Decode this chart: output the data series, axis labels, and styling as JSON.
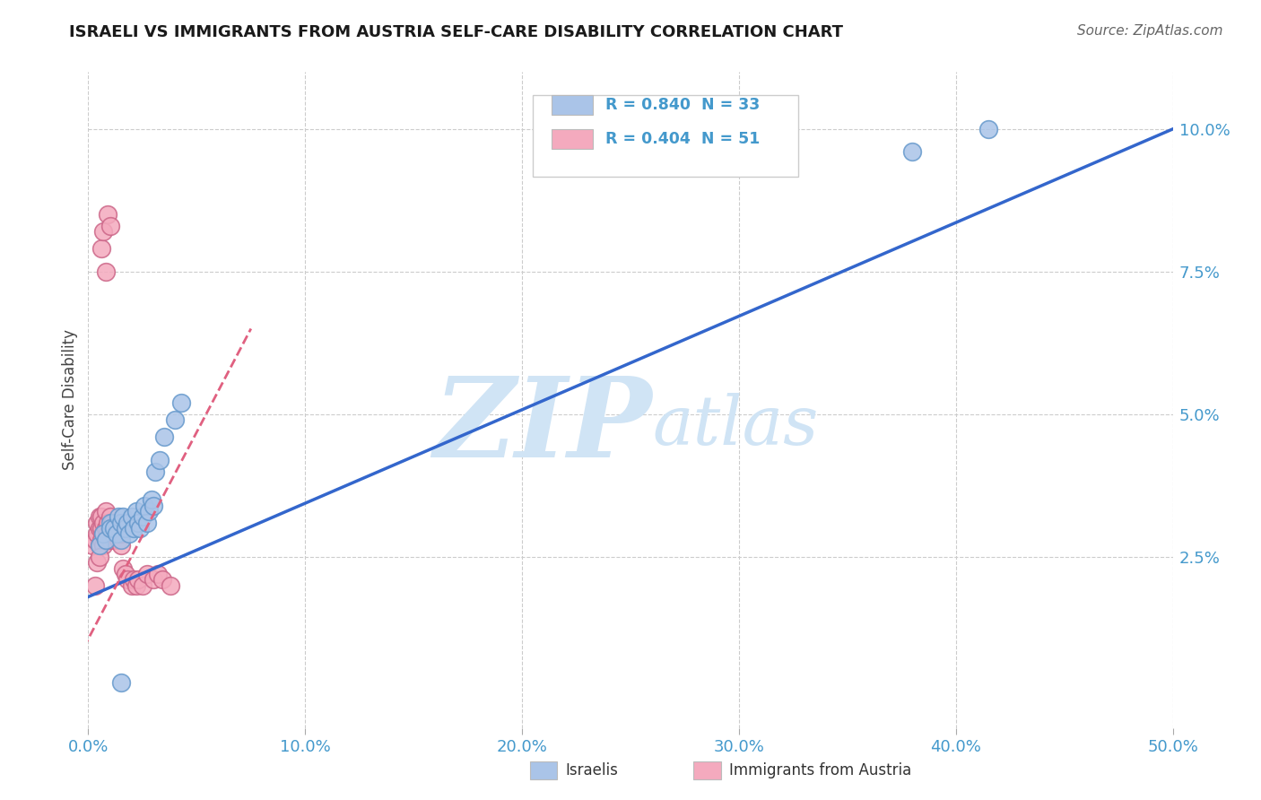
{
  "title": "ISRAELI VS IMMIGRANTS FROM AUSTRIA SELF-CARE DISABILITY CORRELATION CHART",
  "source": "Source: ZipAtlas.com",
  "ylabel": "Self-Care Disability",
  "xlim": [
    0.0,
    0.5
  ],
  "ylim": [
    -0.005,
    0.11
  ],
  "xticks": [
    0.0,
    0.1,
    0.2,
    0.3,
    0.4,
    0.5
  ],
  "yticks": [
    0.025,
    0.05,
    0.075,
    0.1
  ],
  "ytick_labels": [
    "2.5%",
    "5.0%",
    "7.5%",
    "10.0%"
  ],
  "xtick_labels": [
    "0.0%",
    "10.0%",
    "20.0%",
    "30.0%",
    "40.0%",
    "50.0%"
  ],
  "legend_entries": [
    {
      "label": "R = 0.840  N = 33",
      "color": "#aac4e8"
    },
    {
      "label": "R = 0.404  N = 51",
      "color": "#f4aabe"
    }
  ],
  "legend_bottom": [
    {
      "label": "Israelis",
      "color": "#aac4e8"
    },
    {
      "label": "Immigrants from Austria",
      "color": "#f4aabe"
    }
  ],
  "title_color": "#1a1a1a",
  "source_color": "#666666",
  "axis_color": "#4499cc",
  "grid_color": "#cccccc",
  "watermark_zip": "ZIP",
  "watermark_atlas": "atlas",
  "watermark_color": "#d0e4f5",
  "blue_line_color": "#3366cc",
  "pink_line_color": "#e06080",
  "blue_dot_color": "#aac4e8",
  "pink_dot_color": "#f4aabe",
  "blue_dot_edge": "#6699cc",
  "pink_dot_edge": "#cc6688",
  "blue_line_x": [
    0.0,
    0.5
  ],
  "blue_line_y": [
    0.018,
    0.1
  ],
  "pink_line_x": [
    -0.005,
    0.075
  ],
  "pink_line_y": [
    0.007,
    0.065
  ],
  "blue_scatter_x": [
    0.005,
    0.007,
    0.008,
    0.01,
    0.01,
    0.012,
    0.013,
    0.014,
    0.015,
    0.015,
    0.016,
    0.017,
    0.018,
    0.019,
    0.02,
    0.021,
    0.022,
    0.023,
    0.024,
    0.025,
    0.026,
    0.027,
    0.028,
    0.029,
    0.03,
    0.031,
    0.033,
    0.035,
    0.04,
    0.043,
    0.38,
    0.415,
    0.015
  ],
  "blue_scatter_y": [
    0.027,
    0.029,
    0.028,
    0.031,
    0.03,
    0.03,
    0.029,
    0.032,
    0.028,
    0.031,
    0.032,
    0.03,
    0.031,
    0.029,
    0.032,
    0.03,
    0.033,
    0.031,
    0.03,
    0.032,
    0.034,
    0.031,
    0.033,
    0.035,
    0.034,
    0.04,
    0.042,
    0.046,
    0.049,
    0.052,
    0.096,
    0.1,
    0.003
  ],
  "pink_scatter_x": [
    0.002,
    0.003,
    0.004,
    0.004,
    0.005,
    0.005,
    0.005,
    0.006,
    0.006,
    0.006,
    0.007,
    0.007,
    0.007,
    0.008,
    0.008,
    0.008,
    0.009,
    0.009,
    0.01,
    0.01,
    0.01,
    0.011,
    0.011,
    0.012,
    0.012,
    0.013,
    0.013,
    0.014,
    0.015,
    0.015,
    0.016,
    0.017,
    0.018,
    0.02,
    0.021,
    0.022,
    0.023,
    0.025,
    0.027,
    0.03,
    0.032,
    0.034,
    0.038,
    0.008,
    0.006,
    0.007,
    0.009,
    0.01,
    0.004,
    0.005,
    0.003
  ],
  "pink_scatter_y": [
    0.027,
    0.028,
    0.029,
    0.031,
    0.027,
    0.03,
    0.032,
    0.028,
    0.03,
    0.032,
    0.027,
    0.029,
    0.031,
    0.028,
    0.03,
    0.033,
    0.029,
    0.031,
    0.028,
    0.03,
    0.032,
    0.029,
    0.031,
    0.028,
    0.03,
    0.029,
    0.031,
    0.028,
    0.027,
    0.029,
    0.023,
    0.022,
    0.021,
    0.02,
    0.021,
    0.02,
    0.021,
    0.02,
    0.022,
    0.021,
    0.022,
    0.021,
    0.02,
    0.075,
    0.079,
    0.082,
    0.085,
    0.083,
    0.024,
    0.025,
    0.02
  ]
}
